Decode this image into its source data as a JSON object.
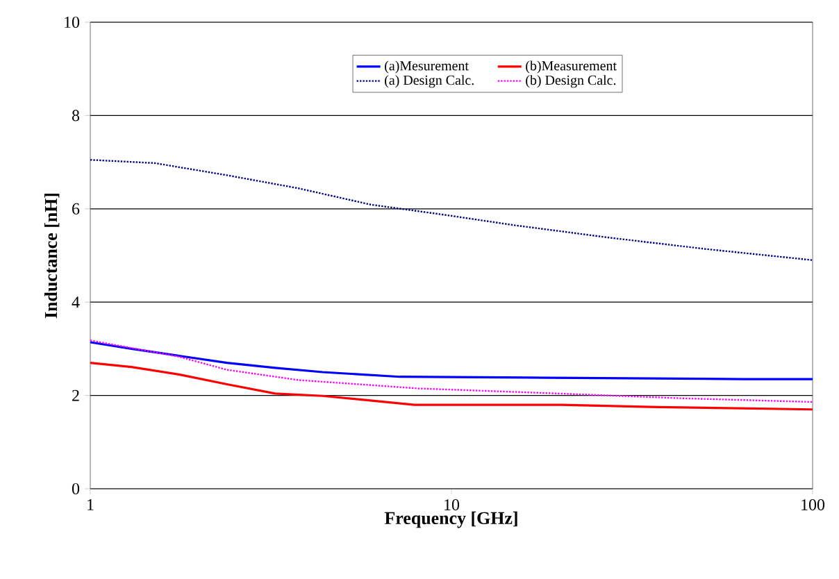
{
  "chart_data": {
    "type": "line",
    "xlabel": "Frequency [GHz]",
    "ylabel": "Inductance [nH]",
    "log": "x",
    "xlim": [
      1,
      100
    ],
    "xticks": [
      1,
      10,
      100
    ],
    "ylim": [
      0,
      10
    ],
    "yticks": [
      0,
      2,
      4,
      6,
      8,
      10
    ],
    "grid": "y",
    "legend": "top",
    "marker": "none",
    "series": [
      {
        "name": "(a)Mesurement",
        "color": "#0000ff",
        "line_style": "solid",
        "x": [
          1,
          1.3,
          1.76,
          2.39,
          3.25,
          4.4,
          7.2,
          18.5,
          65,
          100
        ],
        "values": [
          3.14,
          3.0,
          2.85,
          2.7,
          2.59,
          2.5,
          2.4,
          2.38,
          2.35,
          2.35
        ]
      },
      {
        "name": "(b)Measurement",
        "color": "#ff0000",
        "line_style": "solid",
        "x": [
          1,
          1.3,
          1.76,
          2.39,
          3.25,
          4.4,
          7.9,
          20.2,
          37.3,
          100
        ],
        "values": [
          2.7,
          2.61,
          2.45,
          2.24,
          2.04,
          1.99,
          1.8,
          1.8,
          1.75,
          1.7
        ]
      },
      {
        "name": "(a) Design Calc.",
        "color": "#000080",
        "line_style": "dotted",
        "x": [
          1,
          1.51,
          2.39,
          3.77,
          5.98,
          9.4,
          14.9,
          27.5,
          50.4,
          100
        ],
        "values": [
          7.05,
          6.98,
          6.72,
          6.44,
          6.09,
          5.88,
          5.65,
          5.38,
          5.14,
          4.9
        ]
      },
      {
        "name": "(b) Design Calc.",
        "color": "#ff00ff",
        "line_style": "dotted",
        "x": [
          1,
          1.76,
          2.39,
          3.77,
          8.1,
          20,
          43,
          100
        ],
        "values": [
          3.18,
          2.83,
          2.55,
          2.33,
          2.15,
          2.04,
          1.94,
          1.86
        ]
      }
    ]
  }
}
